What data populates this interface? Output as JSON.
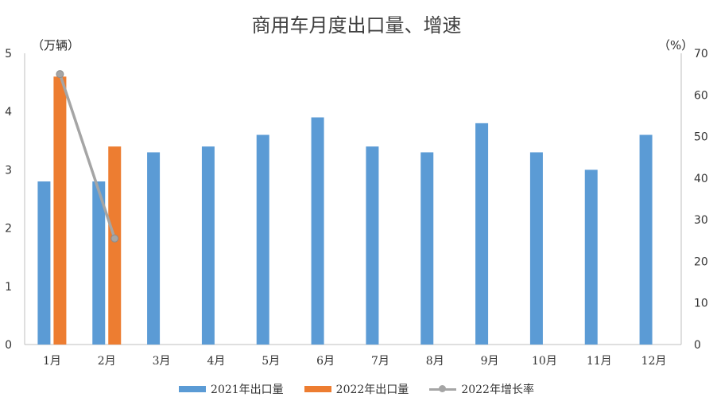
{
  "chart_data": {
    "type": "bar",
    "title": "商用车月度出口量、增速",
    "ylabel_left": "（万辆）",
    "ylabel_right": "（%）",
    "categories": [
      "1月",
      "2月",
      "3月",
      "4月",
      "5月",
      "6月",
      "7月",
      "8月",
      "9月",
      "10月",
      "11月",
      "12月"
    ],
    "y_left": {
      "ticks": [
        "0",
        "1",
        "2",
        "3",
        "4",
        "5"
      ],
      "ylim": [
        0,
        5
      ]
    },
    "y_right": {
      "ticks": [
        "0",
        "10",
        "20",
        "30",
        "40",
        "50",
        "60",
        "70"
      ],
      "ylim": [
        0,
        70
      ]
    },
    "series": [
      {
        "name": "2021年出口量",
        "type": "bar",
        "axis": "left",
        "color": "#5b9bd5",
        "values": [
          2.8,
          2.8,
          3.3,
          3.4,
          3.6,
          3.9,
          3.4,
          3.3,
          3.8,
          3.3,
          3.0,
          3.6
        ]
      },
      {
        "name": "2022年出口量",
        "type": "bar",
        "axis": "left",
        "color": "#ed7d31",
        "values": [
          4.6,
          3.4,
          null,
          null,
          null,
          null,
          null,
          null,
          null,
          null,
          null,
          null
        ]
      },
      {
        "name": "2022年增长率",
        "type": "line",
        "axis": "right",
        "color": "#a5a5a5",
        "values": [
          65,
          25.5,
          null,
          null,
          null,
          null,
          null,
          null,
          null,
          null,
          null,
          null
        ]
      }
    ],
    "grid": false,
    "legend_position": "bottom"
  }
}
